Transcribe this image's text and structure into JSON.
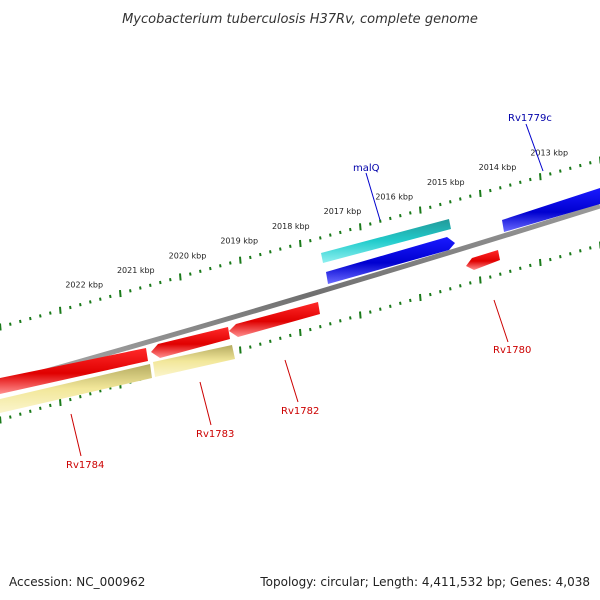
{
  "map": {
    "title": "Mycobacterium tuberculosis H37Rv, complete genome",
    "accession_text": "Accession: NC_000962",
    "summary_text": "Topology: circular; Length: 4,411,532 bp; Genes: 4,038"
  },
  "scale": {
    "tick_color": "#1a7a1a",
    "labels": [
      {
        "text": "2013 kbp",
        "kbp": 2013
      },
      {
        "text": "2014 kbp",
        "kbp": 2014
      },
      {
        "text": "2015 kbp",
        "kbp": 2015
      },
      {
        "text": "2016 kbp",
        "kbp": 2016
      },
      {
        "text": "2017 kbp",
        "kbp": 2017
      },
      {
        "text": "2018 kbp",
        "kbp": 2018
      },
      {
        "text": "2019 kbp",
        "kbp": 2019
      },
      {
        "text": "2020 kbp",
        "kbp": 2020
      },
      {
        "text": "2021 kbp",
        "kbp": 2021
      },
      {
        "text": "2022 kbp",
        "kbp": 2022
      }
    ]
  },
  "genes": [
    {
      "name": "Rv1779c",
      "color": "#0000cc",
      "label_color": "#0000aa"
    },
    {
      "name": "malQ",
      "color": "#0000cc",
      "label_color": "#0000aa"
    },
    {
      "name": "Rv1780",
      "color": "#dd0000",
      "label_color": "#cc0000"
    },
    {
      "name": "Rv1782",
      "color": "#dd0000",
      "label_color": "#cc0000"
    },
    {
      "name": "Rv1783",
      "color": "#dd0000",
      "label_color": "#cc0000"
    },
    {
      "name": "Rv1784",
      "color": "#dd0000",
      "label_color": "#cc0000"
    }
  ],
  "features": [
    {
      "type": "cyan-feature",
      "color": "#22cccc"
    },
    {
      "type": "pale-yellow-feature",
      "color": "#f2e79a"
    }
  ],
  "backbone_color": "#808080"
}
